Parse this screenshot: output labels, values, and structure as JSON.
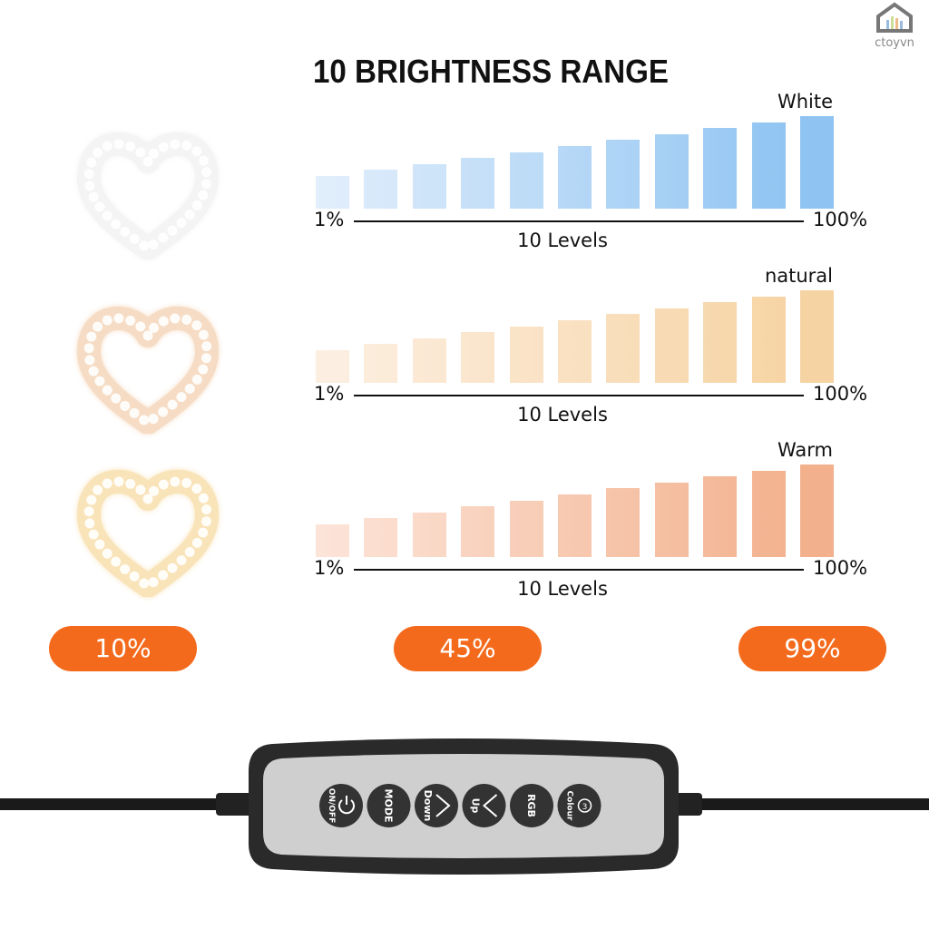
{
  "title": "10 BRIGHTNESS RANGE",
  "rows": [
    {
      "label": "White",
      "min": "1%",
      "max": "100%",
      "levels": "10 Levels",
      "color_start": "#e1eefb",
      "color_end": "#8ec3f2",
      "heart_color": "#f4f4f4"
    },
    {
      "label": "natural",
      "min": "1%",
      "max": "100%",
      "levels": "10 Levels",
      "color_start": "#fcefe2",
      "color_end": "#f6d3a2",
      "heart_color": "#f6dcc4"
    },
    {
      "label": "Warm",
      "min": "1%",
      "max": "100%",
      "levels": "10 Levels",
      "color_start": "#fce4d8",
      "color_end": "#f2b08c",
      "heart_color": "#f9e3b8"
    }
  ],
  "badges": [
    "10%",
    "45%",
    "99%"
  ],
  "badge_color": "#f46a1c",
  "remote": {
    "buttons": [
      {
        "label": "ON/OFF",
        "icon": "power-icon"
      },
      {
        "label": "MODE",
        "icon": ""
      },
      {
        "label": "Down",
        "icon": "chevron-down-icon"
      },
      {
        "label": "Up",
        "icon": "chevron-up-icon"
      },
      {
        "label": "RGB",
        "icon": ""
      },
      {
        "label": "Colour",
        "icon": "number-3-icon",
        "icon_text": "3"
      }
    ]
  },
  "logo": {
    "text": "ctoyvn"
  }
}
